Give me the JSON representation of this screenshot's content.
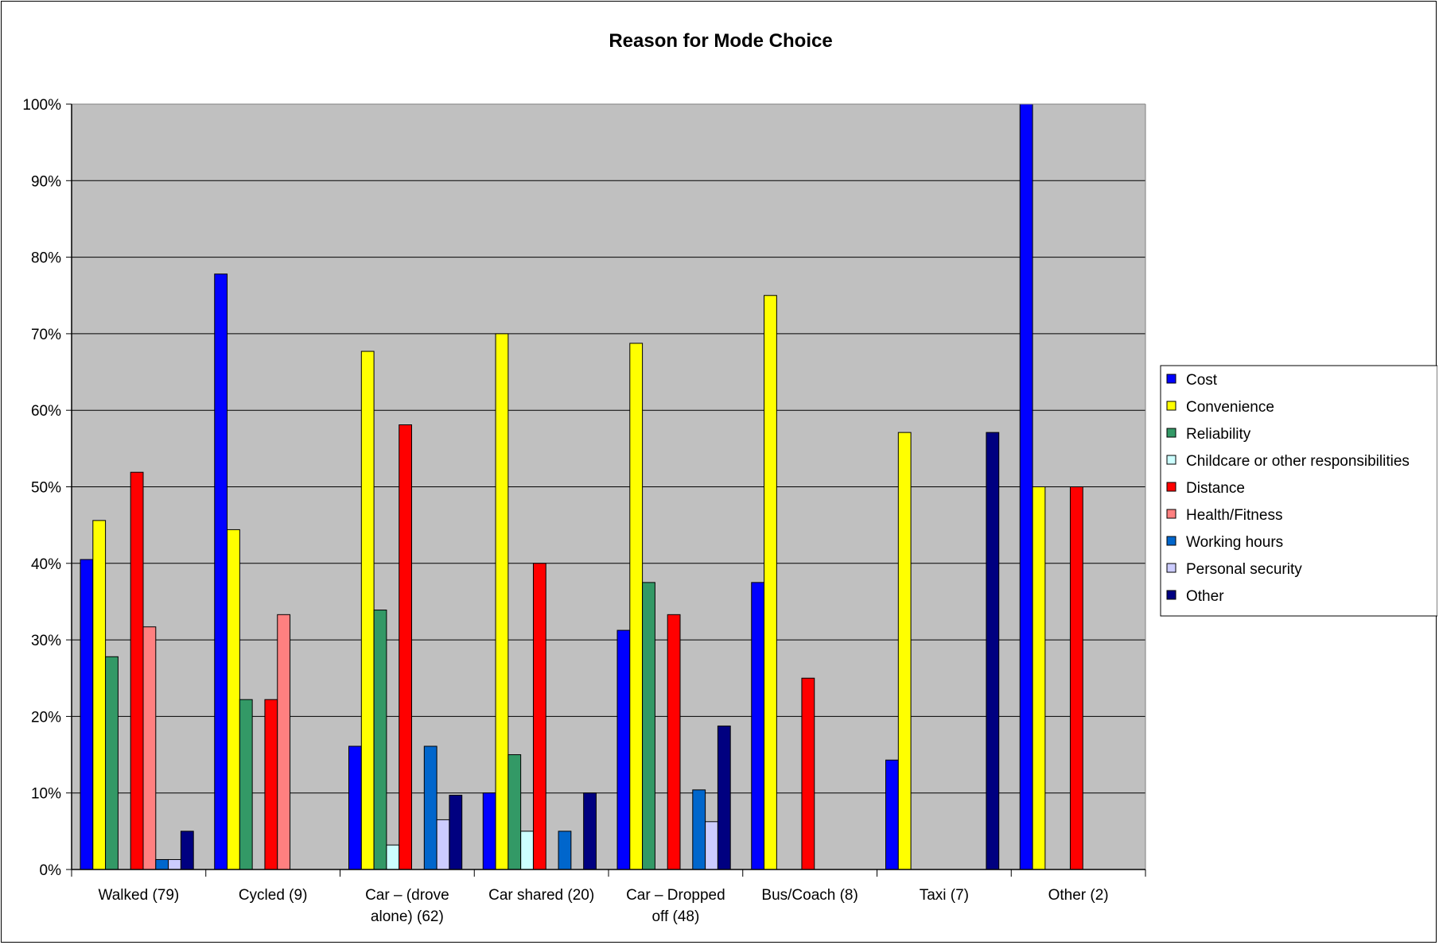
{
  "chart_data": {
    "type": "bar",
    "title": "Reason for Mode Choice",
    "xlabel": "",
    "ylabel": "",
    "ylim": [
      0,
      1
    ],
    "yticks": [
      "0%",
      "10%",
      "20%",
      "30%",
      "40%",
      "50%",
      "60%",
      "70%",
      "80%",
      "90%",
      "100%"
    ],
    "grid": true,
    "legend_position": "right",
    "plot_background": "#c0c0c0",
    "categories": [
      [
        "Walked (79)"
      ],
      [
        "Cycled (9)"
      ],
      [
        "Car – (drove",
        "alone) (62)"
      ],
      [
        "Car shared (20)"
      ],
      [
        "Car – Dropped",
        "off (48)"
      ],
      [
        "Bus/Coach  (8)"
      ],
      [
        "Taxi (7)"
      ],
      [
        "Other (2)"
      ]
    ],
    "series": [
      {
        "name": "Cost",
        "color": "#0000ff",
        "values": [
          0.405,
          0.778,
          0.161,
          0.1,
          0.3125,
          0.375,
          0.143,
          1.0
        ]
      },
      {
        "name": "Convenience",
        "color": "#ffff00",
        "values": [
          0.456,
          0.444,
          0.677,
          0.7,
          0.6875,
          0.75,
          0.571,
          0.5
        ]
      },
      {
        "name": "Reliability",
        "color": "#339966",
        "values": [
          0.278,
          0.222,
          0.339,
          0.15,
          0.375,
          0,
          0,
          0
        ]
      },
      {
        "name": "Childcare or other responsibilities",
        "color": "#ccffff",
        "values": [
          0,
          0,
          0.032,
          0.05,
          0,
          0,
          0,
          0
        ]
      },
      {
        "name": "Distance",
        "color": "#ff0000",
        "values": [
          0.519,
          0.222,
          0.581,
          0.4,
          0.333,
          0.25,
          0,
          0.5
        ]
      },
      {
        "name": "Health/Fitness",
        "color": "#ff8080",
        "values": [
          0.317,
          0.333,
          0,
          0,
          0,
          0,
          0,
          0
        ]
      },
      {
        "name": "Working hours",
        "color": "#0066cc",
        "values": [
          0.013,
          0,
          0.161,
          0.05,
          0.104,
          0,
          0,
          0
        ]
      },
      {
        "name": "Personal security",
        "color": "#ccccff",
        "values": [
          0.013,
          0,
          0.065,
          0,
          0.0625,
          0,
          0,
          0
        ]
      },
      {
        "name": "Other",
        "color": "#000080",
        "values": [
          0.05,
          0,
          0.097,
          0.1,
          0.1875,
          0,
          0.571,
          0
        ]
      }
    ]
  }
}
